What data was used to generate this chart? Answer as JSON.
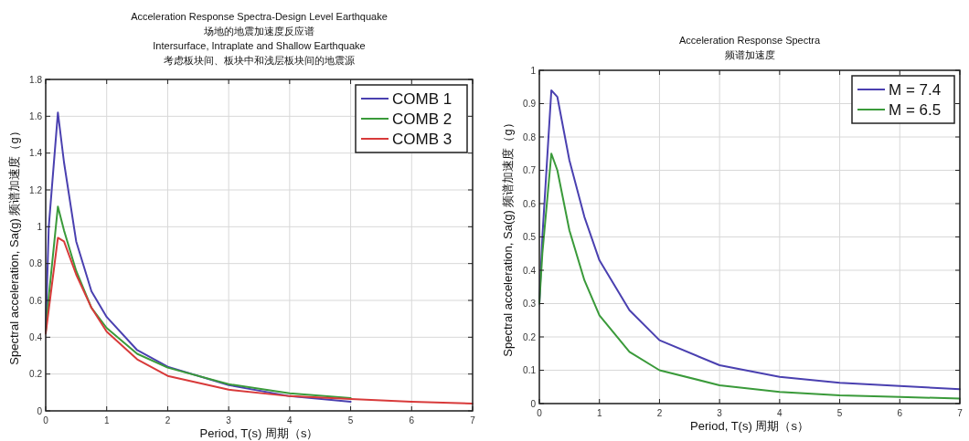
{
  "chart_data": [
    {
      "type": "line",
      "title": "Acceleration Response Spectra-Design Level Earthquake",
      "subtitle": "场地的地震加速度反应谱\nIntersurface, Intraplate and Shallow Earthquake\n考虑板块间、板块中和浅层板块间的地震源",
      "xlabel": "Period, T(s) 周期（s）",
      "ylabel": "Spectral acceleration, Sa(g) 频谱加速度（g）",
      "xlim": [
        0,
        7
      ],
      "ylim": [
        0,
        1.8
      ],
      "xticks": [
        0,
        1,
        2,
        3,
        4,
        5,
        6,
        7
      ],
      "yticks": [
        0,
        0.2,
        0.4,
        0.6,
        0.8,
        1,
        1.2,
        1.4,
        1.6,
        1.8
      ],
      "grid": true,
      "legend": "top right",
      "series": [
        {
          "name": "COMB 1",
          "color": "#4a40b0",
          "x": [
            0,
            0.05,
            0.2,
            0.3,
            0.5,
            0.75,
            1,
            1.5,
            2,
            3,
            4,
            5
          ],
          "values": [
            0.43,
            1.0,
            1.62,
            1.35,
            0.92,
            0.65,
            0.51,
            0.33,
            0.24,
            0.14,
            0.08,
            0.05
          ]
        },
        {
          "name": "COMB 2",
          "color": "#3a9a3a",
          "x": [
            0,
            0.05,
            0.2,
            0.3,
            0.5,
            0.75,
            1,
            1.5,
            2,
            3,
            4,
            5
          ],
          "values": [
            0.43,
            0.62,
            1.11,
            0.98,
            0.76,
            0.56,
            0.45,
            0.31,
            0.235,
            0.145,
            0.095,
            0.07
          ]
        },
        {
          "name": "COMB 3",
          "color": "#d83a3a",
          "x": [
            0,
            0.2,
            0.3,
            0.5,
            0.75,
            1,
            1.5,
            2,
            3,
            4,
            5,
            6,
            7
          ],
          "values": [
            0.42,
            0.94,
            0.92,
            0.74,
            0.56,
            0.43,
            0.28,
            0.19,
            0.115,
            0.08,
            0.065,
            0.05,
            0.04
          ]
        }
      ]
    },
    {
      "type": "line",
      "title": "Acceleration Response Spectra",
      "subtitle": "频谱加速度",
      "xlabel": "Period, T(s) 周期（s）",
      "ylabel": "Spectral acceleration, Sa(g) 频谱加速度（g）",
      "xlim": [
        0,
        7
      ],
      "ylim": [
        0,
        1
      ],
      "xticks": [
        0,
        1,
        2,
        3,
        4,
        5,
        6,
        7
      ],
      "yticks": [
        0,
        0.1,
        0.2,
        0.3,
        0.4,
        0.5,
        0.6,
        0.7,
        0.8,
        0.9,
        1
      ],
      "grid": true,
      "legend": "top right",
      "series": [
        {
          "name": "M = 7.4",
          "color": "#4a40b0",
          "x": [
            0,
            0.05,
            0.2,
            0.3,
            0.5,
            0.75,
            1,
            1.5,
            2,
            3,
            4,
            5,
            6,
            7
          ],
          "values": [
            0.3,
            0.5,
            0.94,
            0.92,
            0.73,
            0.56,
            0.43,
            0.28,
            0.19,
            0.115,
            0.08,
            0.062,
            0.053,
            0.043
          ]
        },
        {
          "name": "M = 6.5",
          "color": "#3a9a3a",
          "x": [
            0,
            0.05,
            0.2,
            0.3,
            0.5,
            0.75,
            1,
            1.5,
            2,
            3,
            4,
            5,
            6,
            7
          ],
          "values": [
            0.3,
            0.45,
            0.75,
            0.7,
            0.52,
            0.37,
            0.265,
            0.155,
            0.1,
            0.055,
            0.035,
            0.025,
            0.02,
            0.015
          ]
        }
      ]
    }
  ]
}
